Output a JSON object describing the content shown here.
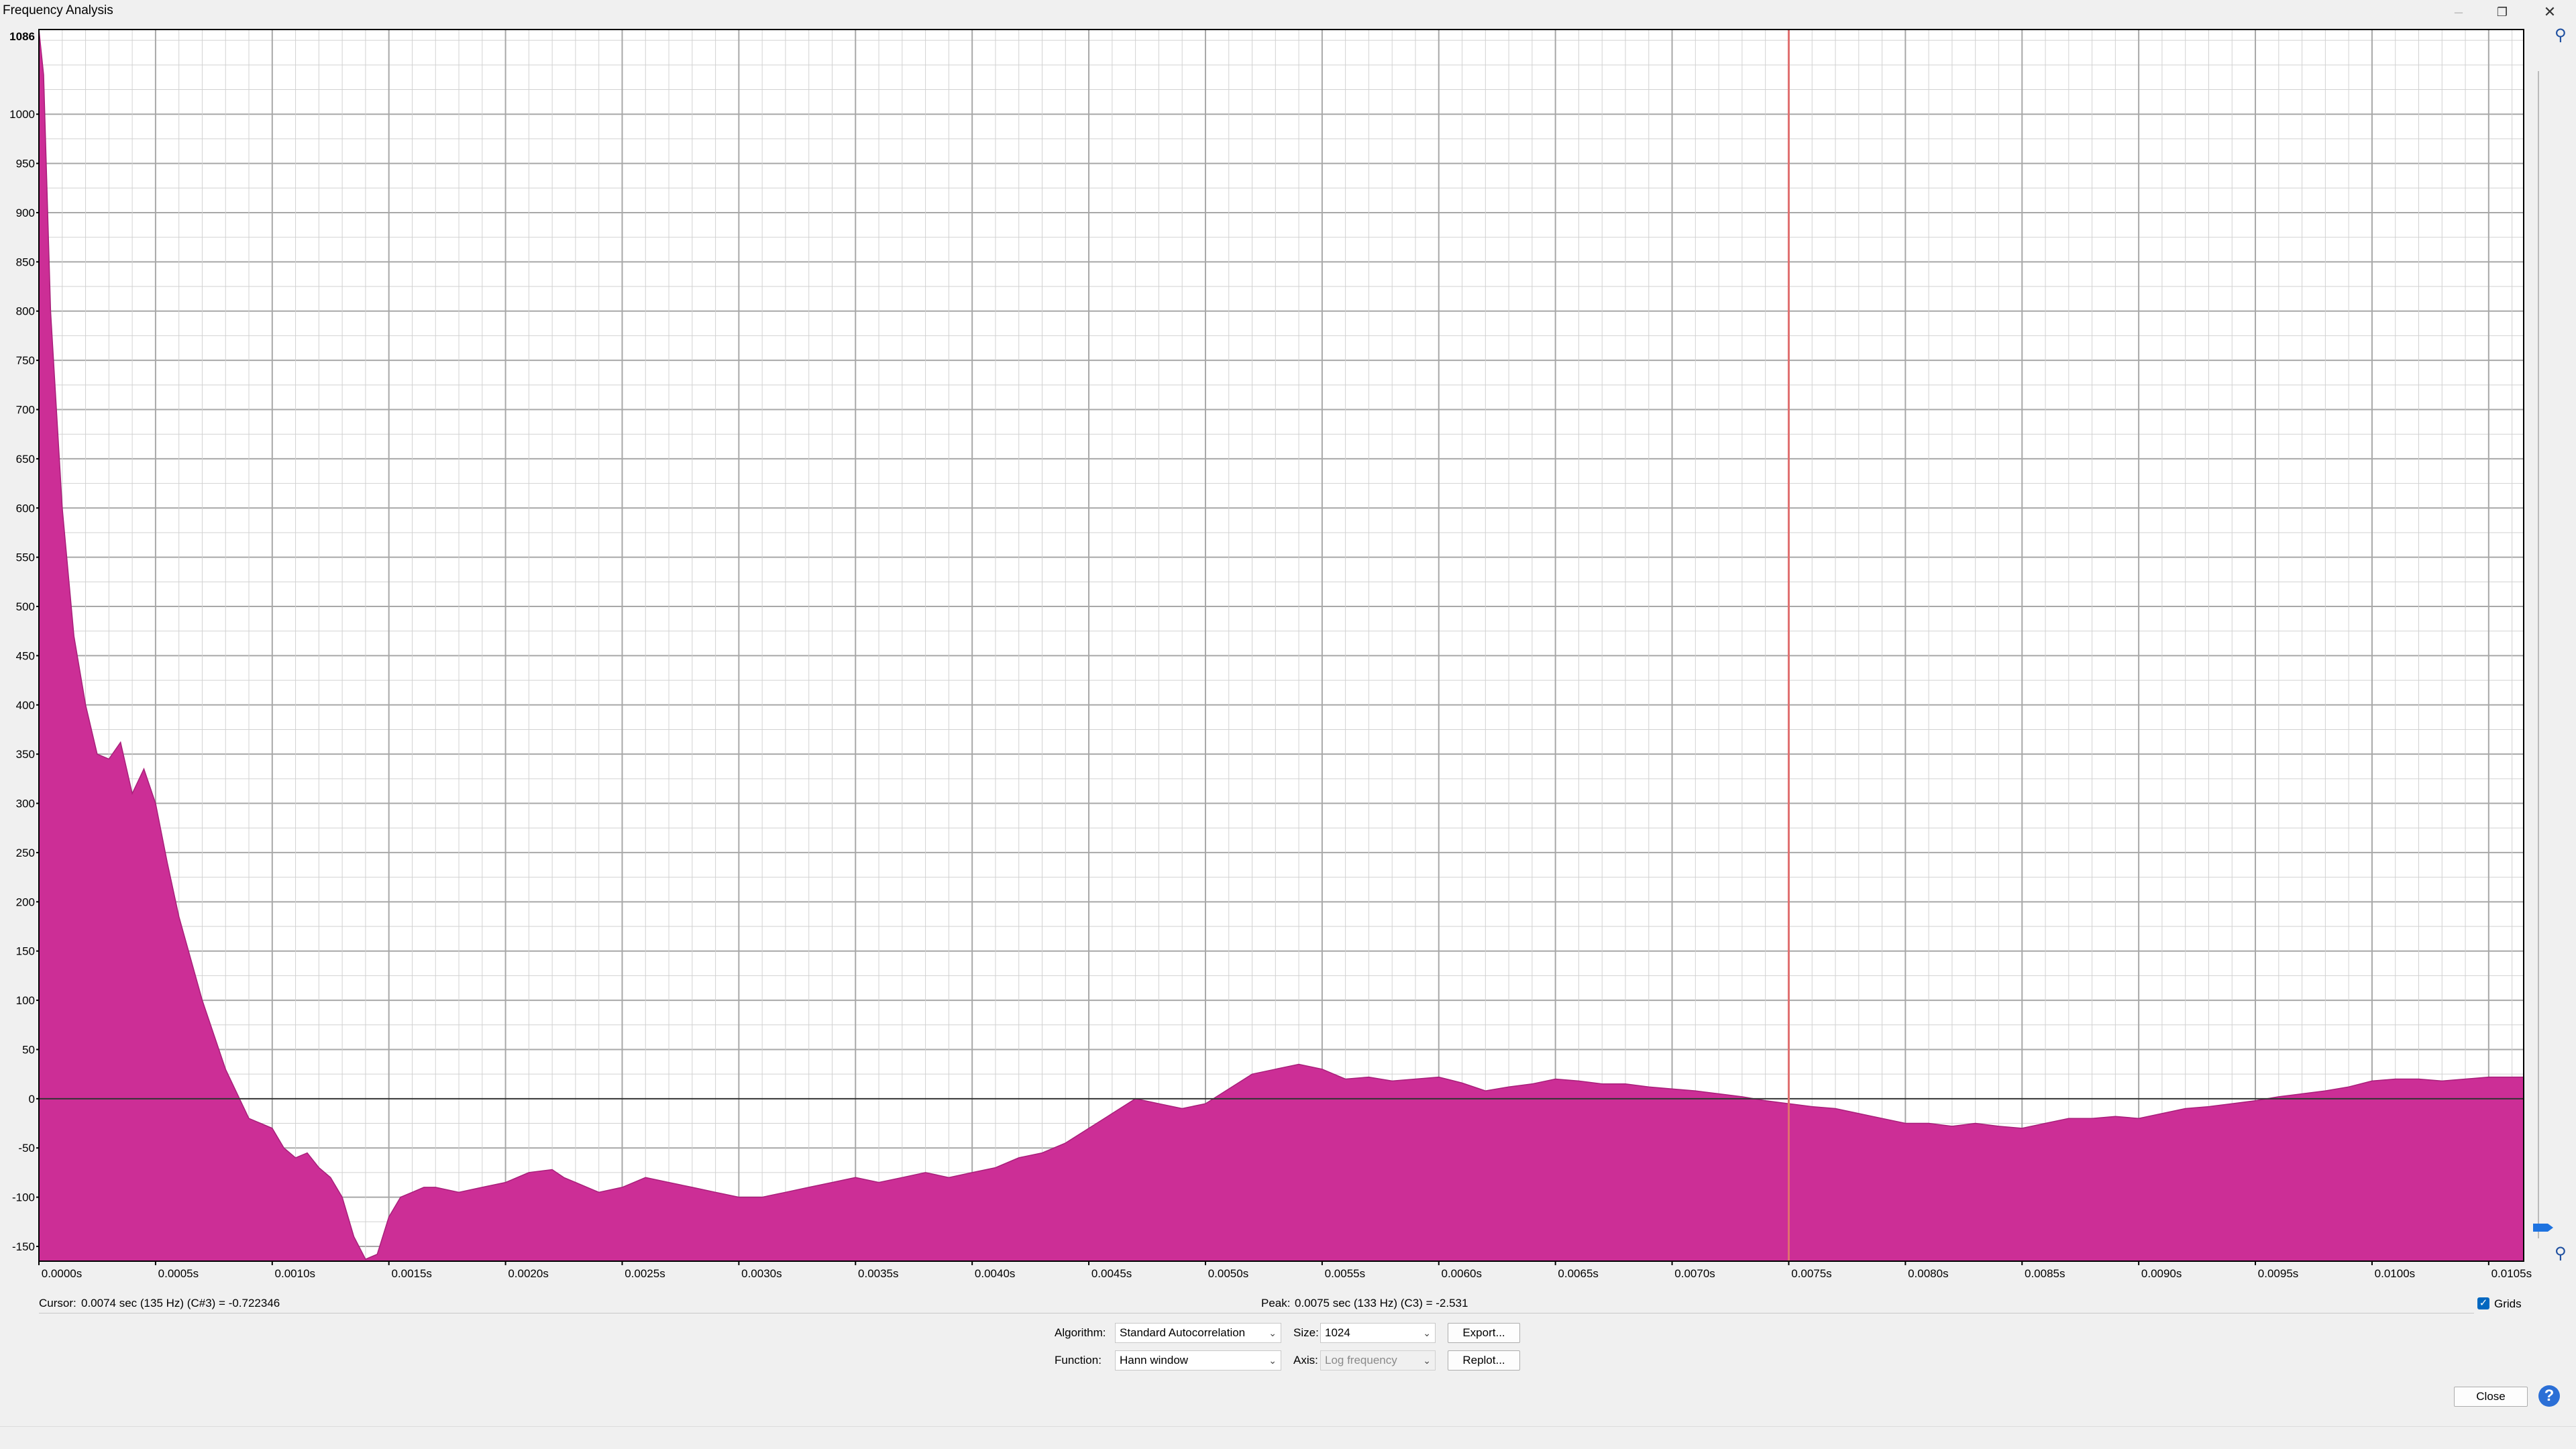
{
  "window": {
    "title": "Frequency Analysis",
    "minimize_icon": "minimize-icon",
    "restore_icon": "restore-icon",
    "close_icon": "close-icon"
  },
  "status": {
    "cursor_label": "Cursor:",
    "cursor_value": "0.0074 sec (135 Hz) (C#3) = -0.722346",
    "peak_label": "Peak:",
    "peak_value": "0.0075 sec (133 Hz) (C3) = -2.531"
  },
  "grids": {
    "label": "Grids",
    "checked": true
  },
  "controls": {
    "algorithm_label": "Algorithm:",
    "algorithm_value": "Standard Autocorrelation",
    "size_label": "Size:",
    "size_value": "1024",
    "export_label": "Export...",
    "function_label": "Function:",
    "function_value": "Hann window",
    "axis_label": "Axis:",
    "axis_value": "Log frequency",
    "replot_label": "Replot...",
    "close_label": "Close"
  },
  "chart_data": {
    "type": "area",
    "color": "#cc2e96",
    "xlim": [
      0,
      0.01065
    ],
    "ylim": [
      -165,
      1086
    ],
    "ytick_top_label": "1086",
    "y_ticks": [
      "1000",
      "950",
      "900",
      "850",
      "800",
      "750",
      "700",
      "650",
      "600",
      "550",
      "500",
      "450",
      "400",
      "350",
      "300",
      "250",
      "200",
      "150",
      "100",
      "50",
      "0",
      "-50",
      "-100",
      "-150"
    ],
    "x_ticks": [
      "0.0000s",
      "0.0005s",
      "0.0010s",
      "0.0015s",
      "0.0020s",
      "0.0025s",
      "0.0030s",
      "0.0035s",
      "0.0040s",
      "0.0045s",
      "0.0050s",
      "0.0055s",
      "0.0060s",
      "0.0065s",
      "0.0070s",
      "0.0075s",
      "0.0080s",
      "0.0085s",
      "0.0090s",
      "0.0095s",
      "0.0100s",
      "0.0105s"
    ],
    "cursor_x": 0.0075,
    "grid": true,
    "x": [
      0,
      2e-05,
      5e-05,
      0.0001,
      0.00015,
      0.0002,
      0.00025,
      0.0003,
      0.00035,
      0.0004,
      0.00045,
      0.0005,
      0.00055,
      0.0006,
      0.0007,
      0.0008,
      0.0009,
      0.00095,
      0.001,
      0.00105,
      0.0011,
      0.00115,
      0.0012,
      0.00125,
      0.0013,
      0.00135,
      0.0014,
      0.00145,
      0.0015,
      0.00155,
      0.0016,
      0.00165,
      0.0017,
      0.0018,
      0.0019,
      0.002,
      0.0021,
      0.0022,
      0.00225,
      0.0023,
      0.0024,
      0.0025,
      0.0026,
      0.0027,
      0.0028,
      0.0029,
      0.003,
      0.0031,
      0.0032,
      0.0033,
      0.0034,
      0.0035,
      0.0036,
      0.0037,
      0.0038,
      0.0039,
      0.004,
      0.0041,
      0.0042,
      0.0043,
      0.0044,
      0.0045,
      0.0046,
      0.0047,
      0.0048,
      0.0049,
      0.005,
      0.0051,
      0.0052,
      0.0053,
      0.0054,
      0.0055,
      0.0056,
      0.0057,
      0.0058,
      0.0059,
      0.006,
      0.0061,
      0.0062,
      0.0063,
      0.0064,
      0.0065,
      0.0066,
      0.0067,
      0.0068,
      0.0069,
      0.007,
      0.0071,
      0.0072,
      0.0073,
      0.0074,
      0.0075,
      0.0076,
      0.0077,
      0.0078,
      0.0079,
      0.008,
      0.0081,
      0.0082,
      0.0083,
      0.0084,
      0.0085,
      0.0086,
      0.0087,
      0.0088,
      0.0089,
      0.009,
      0.0091,
      0.0092,
      0.0093,
      0.0094,
      0.0095,
      0.0096,
      0.0097,
      0.0098,
      0.0099,
      0.01,
      0.0101,
      0.0102,
      0.0103,
      0.0104,
      0.0105,
      0.01065
    ],
    "y": [
      1086,
      1040,
      800,
      600,
      470,
      400,
      350,
      345,
      362,
      310,
      335,
      300,
      240,
      185,
      100,
      30,
      -20,
      -25,
      -30,
      -50,
      -60,
      -55,
      -70,
      -80,
      -100,
      -140,
      -163,
      -158,
      -120,
      -100,
      -95,
      -90,
      -90,
      -95,
      -90,
      -85,
      -75,
      -72,
      -80,
      -85,
      -95,
      -90,
      -80,
      -85,
      -90,
      -95,
      -100,
      -100,
      -95,
      -90,
      -85,
      -80,
      -85,
      -80,
      -75,
      -80,
      -75,
      -70,
      -60,
      -55,
      -45,
      -30,
      -15,
      0,
      -5,
      -10,
      -5,
      10,
      25,
      30,
      35,
      30,
      20,
      22,
      18,
      20,
      22,
      16,
      8,
      12,
      15,
      20,
      18,
      15,
      15,
      12,
      10,
      8,
      5,
      2,
      -2,
      -5,
      -8,
      -10,
      -15,
      -20,
      -25,
      -25,
      -28,
      -25,
      -28,
      -30,
      -25,
      -20,
      -20,
      -18,
      -20,
      -15,
      -10,
      -8,
      -5,
      -2,
      2,
      5,
      8,
      12,
      18,
      20,
      20,
      18,
      20,
      22,
      22
    ]
  }
}
